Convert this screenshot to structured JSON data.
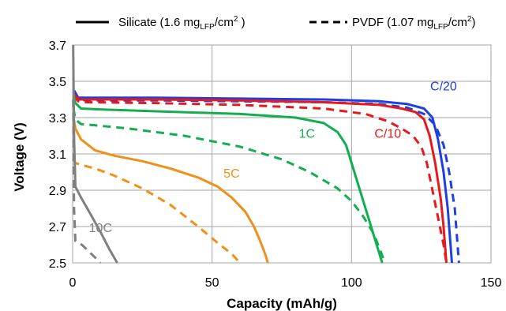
{
  "chart_data": {
    "type": "line",
    "xlabel": "Capacity (mAh/g)",
    "ylabel": "Voltage (V)",
    "xlim": [
      0,
      150
    ],
    "ylim": [
      2.5,
      3.7
    ],
    "x_ticks": [
      "0",
      "50",
      "100",
      "150"
    ],
    "y_ticks": [
      "2.5",
      "2.7",
      "2.9",
      "3.1",
      "3.3",
      "3.5",
      "3.7"
    ],
    "grid": true,
    "legend": {
      "placement": "top",
      "solid": {
        "main": "Silicate (1.6 mg",
        "sub": "LFP",
        "tail": "/cm",
        "sup": "2",
        "end": " )"
      },
      "dashed": {
        "main": "PVDF (1.07 mg",
        "sub": "LFP",
        "tail": "/cm",
        "sup": "2",
        "end": ")"
      }
    },
    "rates": [
      {
        "label": "C/20",
        "color": "#1f3fe0",
        "label_x": 133,
        "label_y": 3.45
      },
      {
        "label": "C/10",
        "color": "#e41a1c",
        "label_x": 113,
        "label_y": 3.19
      },
      {
        "label": "1C",
        "color": "#14ad4f",
        "label_x": 84,
        "label_y": 3.19
      },
      {
        "label": "5C",
        "color": "#f0901b",
        "label_x": 57,
        "label_y": 2.97
      },
      {
        "label": "10C",
        "color": "#808080",
        "label_x": 10,
        "label_y": 2.67
      }
    ],
    "series": [
      {
        "rate": "C/20",
        "style": "solid",
        "points": [
          [
            0.5,
            3.45
          ],
          [
            2,
            3.41
          ],
          [
            5,
            3.41
          ],
          [
            30,
            3.41
          ],
          [
            60,
            3.405
          ],
          [
            90,
            3.4
          ],
          [
            110,
            3.39
          ],
          [
            120,
            3.375
          ],
          [
            126,
            3.35
          ],
          [
            129,
            3.3
          ],
          [
            131,
            3.18
          ],
          [
            133,
            3.0
          ],
          [
            134.5,
            2.8
          ],
          [
            136,
            2.5
          ]
        ]
      },
      {
        "rate": "C/20",
        "style": "dashed",
        "points": [
          [
            0.5,
            3.44
          ],
          [
            2,
            3.4
          ],
          [
            5,
            3.395
          ],
          [
            30,
            3.395
          ],
          [
            60,
            3.39
          ],
          [
            90,
            3.385
          ],
          [
            110,
            3.375
          ],
          [
            120,
            3.355
          ],
          [
            126,
            3.32
          ],
          [
            130,
            3.26
          ],
          [
            133,
            3.15
          ],
          [
            135,
            3.0
          ],
          [
            137,
            2.8
          ],
          [
            138.5,
            2.5
          ]
        ]
      },
      {
        "rate": "C/10",
        "style": "solid",
        "points": [
          [
            0.5,
            3.43
          ],
          [
            2,
            3.4
          ],
          [
            5,
            3.4
          ],
          [
            30,
            3.4
          ],
          [
            60,
            3.395
          ],
          [
            90,
            3.385
          ],
          [
            110,
            3.37
          ],
          [
            118,
            3.35
          ],
          [
            123,
            3.33
          ],
          [
            126,
            3.29
          ],
          [
            128,
            3.2
          ],
          [
            130,
            3.05
          ],
          [
            132,
            2.85
          ],
          [
            133,
            2.7
          ],
          [
            134,
            2.5
          ]
        ]
      },
      {
        "rate": "C/10",
        "style": "dashed",
        "points": [
          [
            0.5,
            3.42
          ],
          [
            2,
            3.39
          ],
          [
            5,
            3.385
          ],
          [
            30,
            3.38
          ],
          [
            60,
            3.37
          ],
          [
            90,
            3.35
          ],
          [
            105,
            3.32
          ],
          [
            113,
            3.28
          ],
          [
            118,
            3.24
          ],
          [
            122,
            3.2
          ],
          [
            125,
            3.14
          ],
          [
            127,
            3.05
          ],
          [
            129,
            2.9
          ],
          [
            131,
            2.75
          ],
          [
            133,
            2.6
          ],
          [
            134,
            2.5
          ]
        ]
      },
      {
        "rate": "1C",
        "style": "solid",
        "points": [
          [
            0.3,
            3.43
          ],
          [
            1,
            3.38
          ],
          [
            3,
            3.35
          ],
          [
            10,
            3.345
          ],
          [
            30,
            3.335
          ],
          [
            60,
            3.32
          ],
          [
            80,
            3.3
          ],
          [
            90,
            3.27
          ],
          [
            95,
            3.22
          ],
          [
            98,
            3.15
          ],
          [
            101,
            3.0
          ],
          [
            104,
            2.85
          ],
          [
            107,
            2.7
          ],
          [
            109,
            2.6
          ],
          [
            111,
            2.5
          ]
        ]
      },
      {
        "rate": "1C",
        "style": "dashed",
        "points": [
          [
            0.3,
            3.35
          ],
          [
            1,
            3.29
          ],
          [
            3,
            3.265
          ],
          [
            10,
            3.255
          ],
          [
            20,
            3.24
          ],
          [
            40,
            3.2
          ],
          [
            60,
            3.14
          ],
          [
            75,
            3.07
          ],
          [
            85,
            3.0
          ],
          [
            95,
            2.91
          ],
          [
            100,
            2.84
          ],
          [
            104,
            2.76
          ],
          [
            108,
            2.66
          ],
          [
            110,
            2.58
          ],
          [
            112,
            2.5
          ]
        ]
      },
      {
        "rate": "5C",
        "style": "solid",
        "points": [
          [
            0.3,
            3.3
          ],
          [
            1,
            3.24
          ],
          [
            3,
            3.18
          ],
          [
            8,
            3.12
          ],
          [
            15,
            3.09
          ],
          [
            25,
            3.06
          ],
          [
            35,
            3.02
          ],
          [
            45,
            2.97
          ],
          [
            52,
            2.92
          ],
          [
            57,
            2.86
          ],
          [
            62,
            2.78
          ],
          [
            65,
            2.7
          ],
          [
            67,
            2.63
          ],
          [
            69,
            2.55
          ],
          [
            70,
            2.5
          ]
        ]
      },
      {
        "rate": "5C",
        "style": "dashed",
        "points": [
          [
            0.3,
            3.07
          ],
          [
            1,
            3.05
          ],
          [
            3,
            3.04
          ],
          [
            8,
            3.02
          ],
          [
            15,
            2.98
          ],
          [
            25,
            2.91
          ],
          [
            35,
            2.82
          ],
          [
            45,
            2.7
          ],
          [
            52,
            2.61
          ],
          [
            57,
            2.55
          ],
          [
            60,
            2.5
          ]
        ]
      },
      {
        "rate": "10C",
        "style": "solid",
        "points": [
          [
            0.2,
            3.7
          ],
          [
            0.5,
            3.2
          ],
          [
            1,
            2.92
          ],
          [
            3,
            2.86
          ],
          [
            6,
            2.78
          ],
          [
            10,
            2.67
          ],
          [
            13,
            2.58
          ],
          [
            16,
            2.5
          ]
        ]
      },
      {
        "rate": "10C",
        "style": "dashed",
        "points": [
          [
            0.2,
            3.4
          ],
          [
            0.5,
            2.8
          ],
          [
            1,
            2.62
          ],
          [
            2.5,
            2.61
          ],
          [
            4,
            2.59
          ],
          [
            6,
            2.56
          ],
          [
            8,
            2.53
          ],
          [
            10,
            2.5
          ]
        ]
      }
    ]
  }
}
